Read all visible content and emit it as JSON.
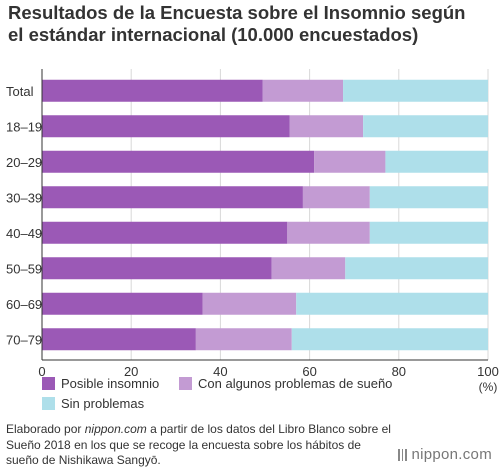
{
  "title_line1": "Resultados de la Encuesta sobre el Insomnio según",
  "title_line2": "el estándar internacional (10.000 encuestados)",
  "colors": {
    "possible_insomnia": "#9B59B6",
    "some_problems": "#C39BD3",
    "no_problems": "#AEDFEA",
    "grid": "#d8d8d8",
    "axis": "#333333"
  },
  "chart_data": {
    "type": "bar",
    "orientation": "horizontal",
    "stacked": true,
    "categories": [
      "Total",
      "18–19",
      "20–29",
      "30–39",
      "40–49",
      "50–59",
      "60–69",
      "70–79"
    ],
    "series": [
      {
        "name": "Posible insomnio",
        "values": [
          49.5,
          55.5,
          61,
          58.5,
          55,
          51.5,
          36,
          34.5
        ]
      },
      {
        "name": "Con algunos problemas de sueño",
        "values": [
          18,
          16.5,
          16,
          15,
          18.5,
          16.5,
          21,
          21.5
        ]
      },
      {
        "name": "Sin problemas",
        "values": [
          32.5,
          28,
          23,
          26.5,
          26.5,
          32,
          43,
          44
        ]
      }
    ],
    "xlim": [
      0,
      100
    ],
    "xticks": [
      "0",
      "20",
      "40",
      "60",
      "80",
      "100"
    ],
    "xunit": "(%)",
    "grid": true,
    "legend_position": "bottom"
  },
  "footer": {
    "part1": "Elaborado por ",
    "site": "nippon.com",
    "part2": " a partir de los datos del Libro Blanco sobre el Sueño 2018 en los que se recoge la encuesta sobre los hábitos de sueño de Nishikawa Sangyō."
  },
  "logo_text": "nippon.com"
}
